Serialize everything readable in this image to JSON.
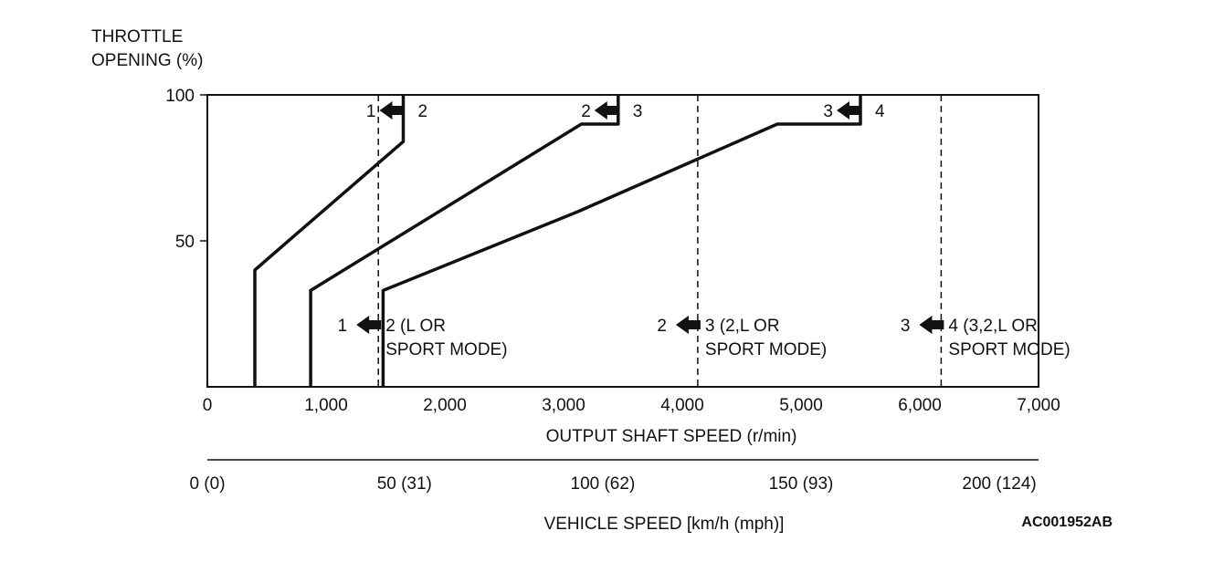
{
  "chart_data": {
    "type": "line",
    "ylabel_lines": [
      "THROTTLE",
      "OPENING (%)"
    ],
    "xlabel": "OUTPUT SHAFT SPEED (r/min)",
    "secondary_xlabel": "VEHICLE SPEED [km/h (mph)]",
    "xlim": [
      0,
      7000
    ],
    "ylim": [
      0,
      100
    ],
    "x_ticks": [
      {
        "value": 0,
        "label": "0"
      },
      {
        "value": 1000,
        "label": "1,000"
      },
      {
        "value": 2000,
        "label": "2,000"
      },
      {
        "value": 3000,
        "label": "3,000"
      },
      {
        "value": 4000,
        "label": "4,000"
      },
      {
        "value": 5000,
        "label": "5,000"
      },
      {
        "value": 6000,
        "label": "6,000"
      },
      {
        "value": 7000,
        "label": "7,000"
      }
    ],
    "y_ticks": [
      {
        "value": 50,
        "label": "50"
      },
      {
        "value": 100,
        "label": "100"
      }
    ],
    "secondary_x_ticks": [
      {
        "value": 0,
        "label": "0 (0)"
      },
      {
        "value": 1660,
        "label": "50 (31)"
      },
      {
        "value": 3330,
        "label": "100 (62)"
      },
      {
        "value": 5000,
        "label": "150 (93)"
      },
      {
        "value": 6670,
        "label": "200 (124)"
      }
    ],
    "upshift_lines": [
      {
        "from": "1",
        "to": "2",
        "label_from": "1",
        "label_to": "2",
        "points": [
          [
            400,
            0
          ],
          [
            400,
            40
          ],
          [
            740,
            52
          ],
          [
            1650,
            84
          ],
          [
            1650,
            100
          ]
        ]
      },
      {
        "from": "2",
        "to": "3",
        "label_from": "2",
        "label_to": "3",
        "points": [
          [
            870,
            0
          ],
          [
            870,
            33
          ],
          [
            3150,
            90
          ],
          [
            3460,
            90
          ],
          [
            3460,
            100
          ]
        ]
      },
      {
        "from": "3",
        "to": "4",
        "label_from": "3",
        "label_to": "4",
        "points": [
          [
            1480,
            0
          ],
          [
            1480,
            33
          ],
          [
            3120,
            60
          ],
          [
            4800,
            90
          ],
          [
            5500,
            90
          ],
          [
            5500,
            100
          ]
        ]
      }
    ],
    "downshift_lines": [
      {
        "x": 1440,
        "label_from": "1",
        "label_to": "2",
        "label_lines": [
          "2 (L OR",
          "SPORT MODE)"
        ]
      },
      {
        "x": 4130,
        "label_from": "2",
        "label_to": "3",
        "label_lines": [
          "3 (2,L OR",
          "SPORT MODE)"
        ]
      },
      {
        "x": 6180,
        "label_from": "3",
        "label_to": "4",
        "label_lines": [
          "4 (3,2,L OR",
          "SPORT MODE)"
        ]
      }
    ],
    "grid": false
  },
  "figure_code": "AC001952AB"
}
